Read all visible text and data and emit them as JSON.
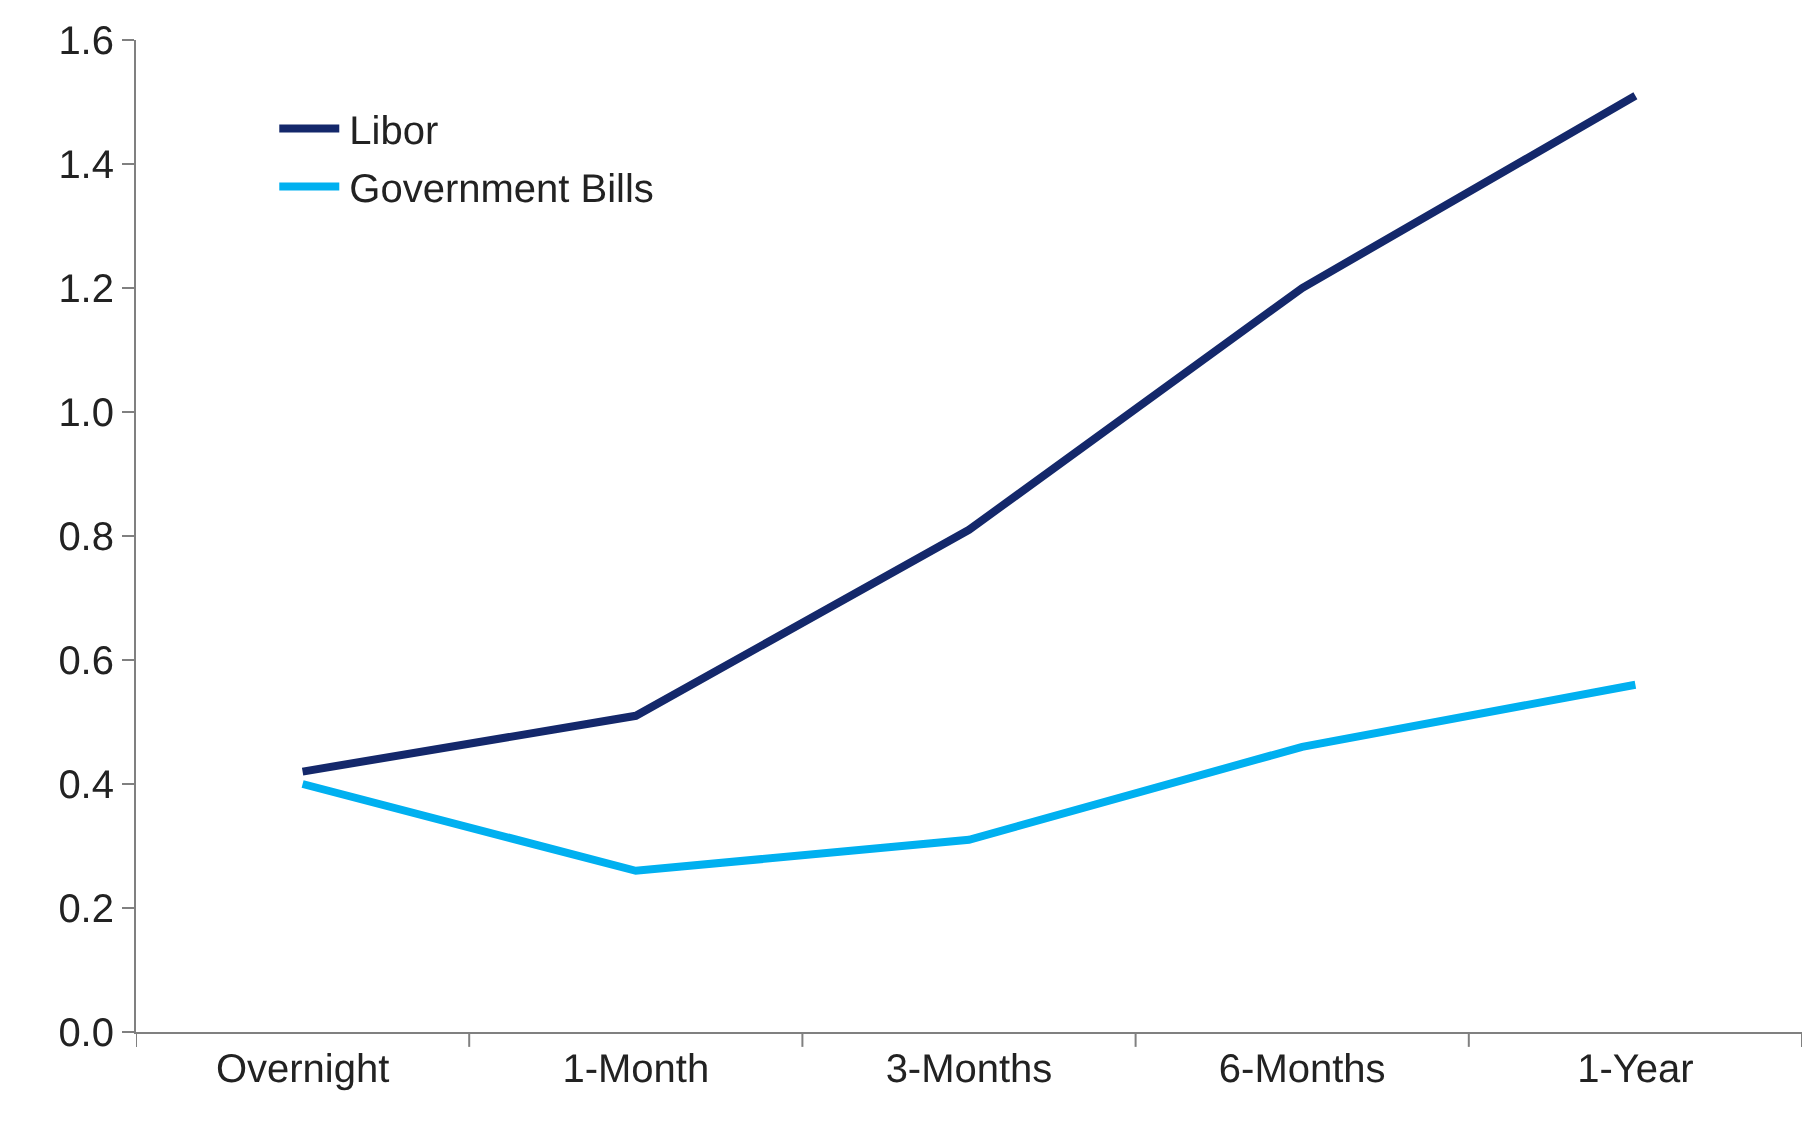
{
  "chart_data": {
    "type": "line",
    "categories": [
      "Overnight",
      "1-Month",
      "3-Months",
      "6-Months",
      "1-Year"
    ],
    "series": [
      {
        "name": "Libor",
        "color": "#14286b",
        "values": [
          0.42,
          0.51,
          0.81,
          1.2,
          1.51
        ]
      },
      {
        "name": "Government Bills",
        "color": "#00b0f0",
        "values": [
          0.4,
          0.26,
          0.31,
          0.46,
          0.56
        ]
      }
    ],
    "ylim": [
      0,
      1.6
    ],
    "yticks": [
      {
        "value": 0,
        "label": "0.0"
      },
      {
        "value": 0.2,
        "label": "0.2"
      },
      {
        "value": 0.4,
        "label": "0.4"
      },
      {
        "value": 0.6,
        "label": "0.6"
      },
      {
        "value": 0.8,
        "label": "0.8"
      },
      {
        "value": 1.0,
        "label": "1.0"
      },
      {
        "value": 1.2,
        "label": "1.2"
      },
      {
        "value": 1.4,
        "label": "1.4"
      },
      {
        "value": 1.6,
        "label": "1.6"
      }
    ],
    "legend": "top left",
    "marker": "none",
    "line_style": "solid"
  }
}
